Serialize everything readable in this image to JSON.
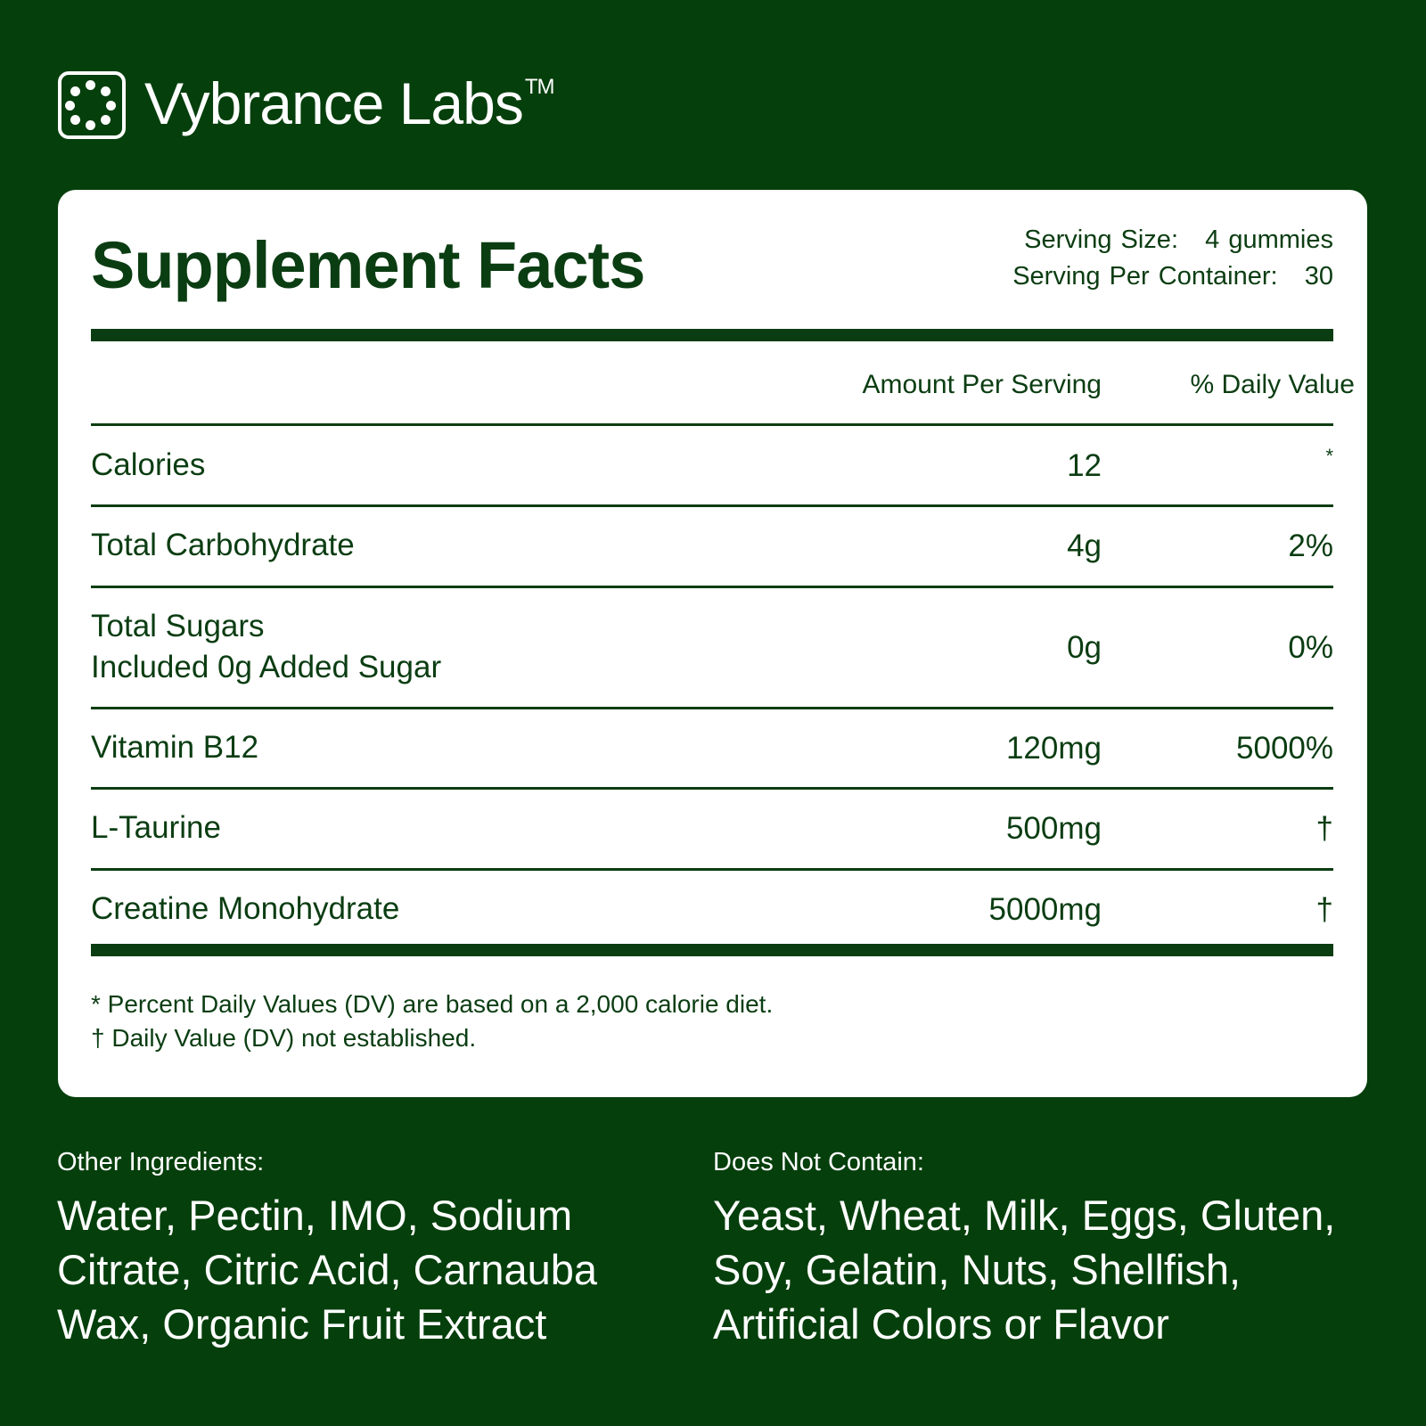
{
  "brand": {
    "name": "Vybrance Labs",
    "trademark": "TM",
    "logo_icon": "dotted-circle-in-rounded-square"
  },
  "facts": {
    "title": "Supplement Facts",
    "serving_size": "Serving Size:   4 gummies",
    "servings_per_container": "Serving Per Container:   30",
    "col_amount": "Amount Per Serving",
    "col_dv": "% Daily Value",
    "rows": [
      {
        "name": "Calories",
        "amount": "12",
        "dv": "*"
      },
      {
        "name": "Total Carbohydrate",
        "amount": "4g",
        "dv": "2%"
      },
      {
        "name": "Total Sugars",
        "subname": "Included 0g Added Sugar",
        "amount": "0g",
        "dv": "0%"
      },
      {
        "name": "Vitamin B12",
        "amount": "120mg",
        "dv": "5000%"
      },
      {
        "name": "L-Taurine",
        "amount": "500mg",
        "dv": "†"
      },
      {
        "name": "Creatine Monohydrate",
        "amount": "5000mg",
        "dv": "†"
      }
    ],
    "footnote1": "* Percent Daily Values (DV) are based on a 2,000 calorie diet.",
    "footnote2": "† Daily Value (DV) not established."
  },
  "other_ingredients": {
    "label": "Other Ingredients:",
    "text": "Water, Pectin, IMO, Sodium Citrate, Citric Acid, Carnauba Wax, Organic Fruit Extract"
  },
  "does_not_contain": {
    "label": "Does Not Contain:",
    "text": "Yeast, Wheat, Milk, Eggs, Gluten, Soy, Gelatin, Nuts, Shellfish, Artificial Colors or Flavor"
  },
  "colors": {
    "background": "#053f0c",
    "text_dark": "#0b3d12",
    "card": "#ffffff"
  }
}
